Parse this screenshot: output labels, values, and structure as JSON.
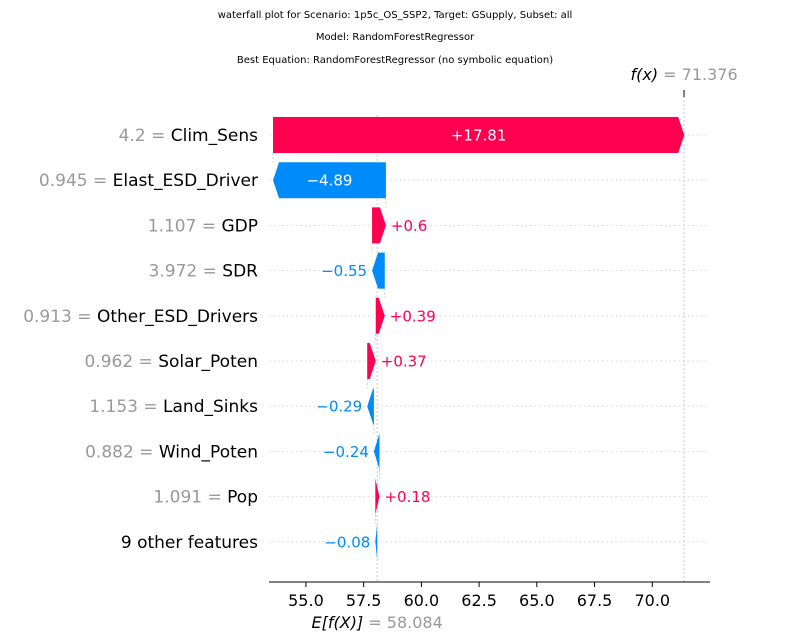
{
  "header": {
    "title_lines": [
      "waterfall plot for Scenario: 1p5c_OS_SSP2, Target: GSupply, Subset: all",
      "Model: RandomForestRegressor",
      "Best Equation: RandomForestRegressor (no symbolic equation)"
    ]
  },
  "colors": {
    "positive": "#ff0051",
    "negative": "#008bfb",
    "muted": "#999999",
    "text": "#000000"
  },
  "chart_data": {
    "type": "waterfall",
    "base_value": 58.084,
    "final_value": 71.376,
    "base_label_prefix": "E[f(X)]",
    "final_label_prefix": "f(x)",
    "base_value_text": "58.084",
    "final_value_text": "71.376",
    "xlim": [
      53.4,
      72.5
    ],
    "ticks": [
      55.0,
      57.5,
      60.0,
      62.5,
      65.0,
      67.5,
      70.0
    ],
    "tick_labels": [
      "55.0",
      "57.5",
      "60.0",
      "62.5",
      "65.0",
      "67.5",
      "70.0"
    ],
    "features": [
      {
        "value": "4.2",
        "name": "Clim_Sens",
        "shap": 17.81,
        "label": "+17.81"
      },
      {
        "value": "0.945",
        "name": "Elast_ESD_Driver",
        "shap": -4.89,
        "label": "−4.89"
      },
      {
        "value": "1.107",
        "name": "GDP",
        "shap": 0.6,
        "label": "+0.6"
      },
      {
        "value": "3.972",
        "name": "SDR",
        "shap": -0.55,
        "label": "−0.55"
      },
      {
        "value": "0.913",
        "name": "Other_ESD_Drivers",
        "shap": 0.39,
        "label": "+0.39"
      },
      {
        "value": "0.962",
        "name": "Solar_Poten",
        "shap": 0.37,
        "label": "+0.37"
      },
      {
        "value": "1.153",
        "name": "Land_Sinks",
        "shap": -0.29,
        "label": "−0.29"
      },
      {
        "value": "0.882",
        "name": "Wind_Poten",
        "shap": -0.24,
        "label": "−0.24"
      },
      {
        "value": "1.091",
        "name": "Pop",
        "shap": 0.18,
        "label": "+0.18"
      },
      {
        "value": "",
        "name": "9 other features",
        "shap": -0.08,
        "label": "−0.08"
      }
    ]
  }
}
